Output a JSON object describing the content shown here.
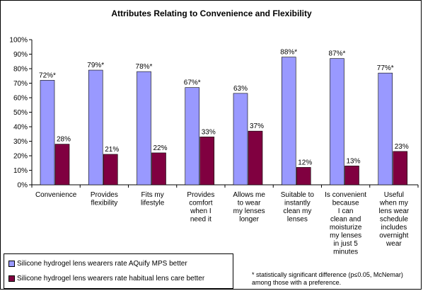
{
  "chart_data": {
    "type": "bar",
    "title": "Attributes Relating to Convenience and Flexibility",
    "xlabel": "",
    "ylabel": "",
    "ylim": [
      0,
      100
    ],
    "yticks": [
      "0%",
      "10%",
      "20%",
      "30%",
      "40%",
      "50%",
      "60%",
      "70%",
      "80%",
      "90%",
      "100%"
    ],
    "grid": false,
    "legend_position": "bottom-left",
    "categories": [
      [
        "Convenience"
      ],
      [
        "Provides",
        "flexibility"
      ],
      [
        "Fits my",
        "lifestyle"
      ],
      [
        "Provides",
        "comfort",
        "when I",
        "need it"
      ],
      [
        "Allows me",
        "to wear",
        "my lenses",
        "longer"
      ],
      [
        "Suitable to",
        "instantly",
        "clean my",
        "lenses"
      ],
      [
        "Is convenient",
        "because",
        "I can",
        "clean and",
        "moisturize",
        "my lenses",
        "in just 5",
        "minutes"
      ],
      [
        "Useful",
        "when my",
        "lens wear",
        "schedule",
        "includes",
        "overnight",
        "wear"
      ]
    ],
    "series": [
      {
        "name": "Silicone hydrogel lens wearers rate AQuify MPS better",
        "color": "#9999ff",
        "values": [
          72,
          79,
          78,
          67,
          63,
          88,
          87,
          77
        ],
        "labels": [
          "72%*",
          "79%*",
          "78%*",
          "67%*",
          "63%",
          "88%*",
          "87%*",
          "77%*"
        ]
      },
      {
        "name": "Silicone hydrogel lens wearers rate habitual lens care better",
        "color": "#800040",
        "values": [
          28,
          21,
          22,
          33,
          37,
          12,
          13,
          23
        ],
        "labels": [
          "28%",
          "21%",
          "22%",
          "33%",
          "37%",
          "12%",
          "13%",
          "23%"
        ]
      }
    ],
    "footnote": [
      "* statistically significant difference (p≤0.05, McNemar)",
      "among those with a preference."
    ]
  }
}
